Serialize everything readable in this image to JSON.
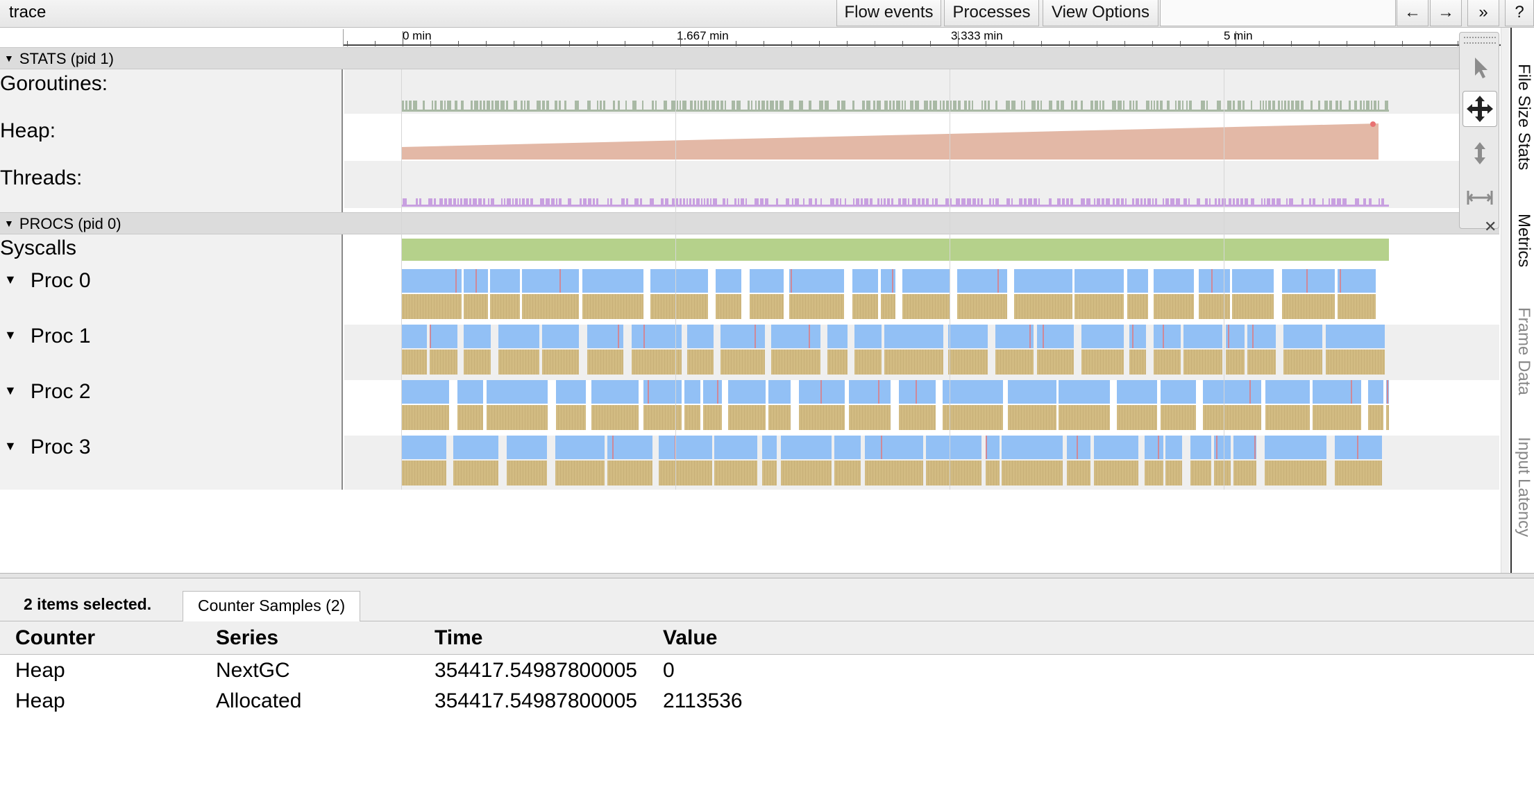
{
  "toolbar": {
    "title": "trace",
    "flow_events": "Flow events",
    "processes": "Processes",
    "view_options": "View Options",
    "nav_back": "←",
    "nav_forward": "→",
    "more": "»",
    "help": "?"
  },
  "ruler": {
    "ticks": [
      "0 min",
      "1.667 min",
      "3.333 min",
      "5 min"
    ]
  },
  "stats_group": {
    "label": "STATS (pid 1)",
    "rows": [
      "Goroutines:",
      "Heap:",
      "Threads:"
    ]
  },
  "procs_group": {
    "label": "PROCS (pid 0)",
    "syscalls_label": "Syscalls",
    "procs": [
      "Proc 0",
      "Proc 1",
      "Proc 2",
      "Proc 3"
    ]
  },
  "side_tabs": [
    "File Size Stats",
    "Metrics",
    "Frame Data",
    "Input Latency"
  ],
  "mode_icons": [
    "select-icon",
    "pan-icon",
    "zoom-icon",
    "timing-icon"
  ],
  "colors": {
    "heap": "#e3b8a6",
    "syscalls": "#b5d18b",
    "running": "#92c0f5",
    "gc": "#d2bb82",
    "goroutines": "#a9b9a5",
    "threads": "#c8a0e0",
    "marker": "#e87272"
  },
  "analysis": {
    "summary": "2 items selected.",
    "tab_label": "Counter Samples (2)",
    "columns": [
      "Counter",
      "Series",
      "Time",
      "Value"
    ],
    "rows": [
      {
        "counter": "Heap",
        "series": "NextGC",
        "time": "354417.54987800005",
        "value": "0"
      },
      {
        "counter": "Heap",
        "series": "Allocated",
        "time": "354417.54987800005",
        "value": "2113536"
      }
    ]
  }
}
